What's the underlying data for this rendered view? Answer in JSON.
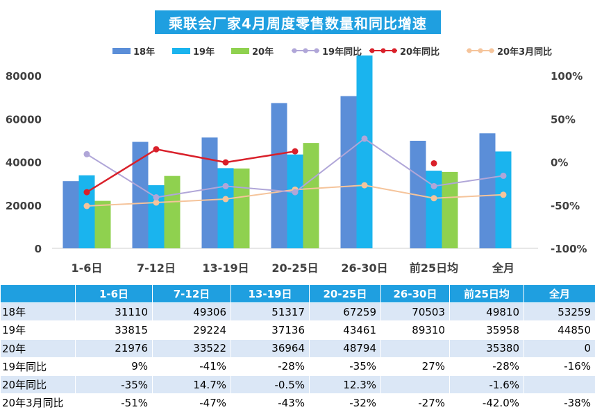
{
  "title": "乘联会厂家4月周度零售数量和同比增速",
  "chart_data": {
    "type": "bar",
    "categories": [
      "1-6日",
      "7-12日",
      "13-19日",
      "20-25日",
      "26-30日",
      "前25日均",
      "全月"
    ],
    "bar_series": [
      {
        "name": "18年",
        "color": "#5b8ed8",
        "values": [
          31110,
          49306,
          51317,
          67259,
          70503,
          49810,
          53259
        ]
      },
      {
        "name": "19年",
        "color": "#1ab4ee",
        "values": [
          33815,
          29224,
          37136,
          43461,
          89310,
          35958,
          44850
        ]
      },
      {
        "name": "20年",
        "color": "#8fd14f",
        "values": [
          21976,
          33522,
          36964,
          48794,
          null,
          35380,
          0
        ]
      }
    ],
    "line_series": [
      {
        "name": "19年同比",
        "color": "#b0a6d8",
        "values": [
          9,
          -41,
          -28,
          -35,
          27,
          -28,
          -16
        ]
      },
      {
        "name": "20年同比",
        "color": "#d9202a",
        "values": [
          -35,
          14.7,
          -0.5,
          12.3,
          null,
          -1.6,
          null
        ]
      },
      {
        "name": "20年3月同比",
        "color": "#f5c49b",
        "values": [
          -51,
          -47,
          -43,
          -32,
          -27,
          -42.0,
          -38
        ]
      }
    ],
    "y_left": {
      "min": 0,
      "max": 80000,
      "ticks": [
        "0",
        "20000",
        "40000",
        "60000",
        "80000"
      ]
    },
    "y_right": {
      "min": -100,
      "max": 100,
      "ticks": [
        "-100%",
        "-50%",
        "0%",
        "50%",
        "100%"
      ]
    },
    "legend_position": "top"
  },
  "table": {
    "headers": [
      "",
      "1-6日",
      "7-12日",
      "13-19日",
      "20-25日",
      "26-30日",
      "前25日均",
      "全月"
    ],
    "rows": [
      [
        "18年",
        "31110",
        "49306",
        "51317",
        "67259",
        "70503",
        "49810",
        "53259"
      ],
      [
        "19年",
        "33815",
        "29224",
        "37136",
        "43461",
        "89310",
        "35958",
        "44850"
      ],
      [
        "20年",
        "21976",
        "33522",
        "36964",
        "48794",
        "",
        "35380",
        "0"
      ],
      [
        "19年同比",
        "9%",
        "-41%",
        "-28%",
        "-35%",
        "27%",
        "-28%",
        "-16%"
      ],
      [
        "20年同比",
        "-35%",
        "14.7%",
        "-0.5%",
        "12.3%",
        "",
        "-1.6%",
        ""
      ],
      [
        "20年3月同比",
        "-51%",
        "-47%",
        "-43%",
        "-32%",
        "-27%",
        "-42.0%",
        "-38%"
      ]
    ]
  }
}
